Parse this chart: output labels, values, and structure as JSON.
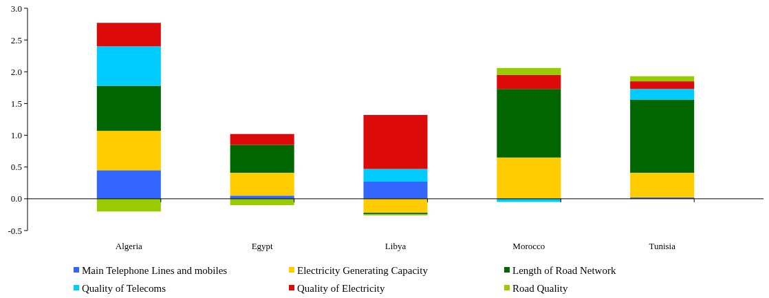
{
  "chart_data": {
    "type": "bar",
    "stacked": true,
    "categories": [
      "Algeria",
      "Egypt",
      "Libya",
      "Morocco",
      "Tunisia"
    ],
    "series": [
      {
        "name": "Main Telephone Lines and mobiles",
        "color": "#3366ff",
        "values": [
          0.45,
          0.05,
          0.27,
          0,
          0.02
        ]
      },
      {
        "name": "Electricity Generating Capacity",
        "color": "#ffcc00",
        "values": [
          0.62,
          0.36,
          -0.22,
          0.65,
          0.39
        ]
      },
      {
        "name": "Length of Road Network",
        "color": "#006600",
        "values": [
          0.71,
          0.44,
          -0.02,
          1.08,
          1.15
        ]
      },
      {
        "name": "Quality of Telecoms",
        "color": "#00ccff",
        "values": [
          0.62,
          0,
          0.2,
          -0.05,
          0.17
        ]
      },
      {
        "name": "Quality of Electricity",
        "color": "#dd0a0a",
        "values": [
          0.37,
          0.17,
          0.85,
          0.22,
          0.12
        ]
      },
      {
        "name": "Road Quality",
        "color": "#99cc00",
        "values": [
          -0.2,
          -0.1,
          -0.02,
          0.11,
          0.08
        ]
      }
    ],
    "ylim": [
      -0.5,
      3
    ],
    "yticks": [
      {
        "value": -0.5,
        "label": "-0.5"
      },
      {
        "value": 0,
        "label": "0.0"
      },
      {
        "value": 0.5,
        "label": "0.5"
      },
      {
        "value": 1,
        "label": "1.0"
      },
      {
        "value": 1.5,
        "label": "1.5"
      },
      {
        "value": 2,
        "label": "2.0"
      },
      {
        "value": 2.5,
        "label": "2.5"
      },
      {
        "value": 3,
        "label": "3.0"
      }
    ],
    "legend": "bottom"
  }
}
